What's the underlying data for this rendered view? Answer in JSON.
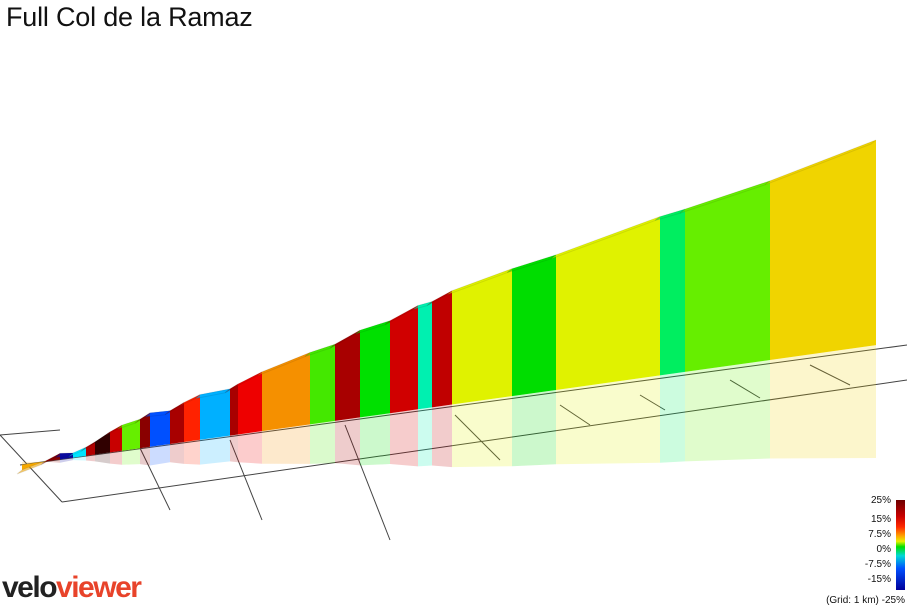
{
  "chart_data": {
    "type": "area",
    "title": "Full Col de la Ramaz",
    "grid_label": "(Grid: 1 km)",
    "legend": {
      "ticks": [
        "25%",
        "15%",
        "7.5%",
        "0%",
        "-7.5%",
        "-15%",
        "-25%"
      ],
      "colors": [
        "#6d0000",
        "#c80000",
        "#ff2a00",
        "#ffa500",
        "#e8f000",
        "#00e000",
        "#00d8d8",
        "#0050ff",
        "#00009a"
      ]
    },
    "segments": [
      {
        "gradient": 6,
        "color": "#f5a800"
      },
      {
        "gradient": 14,
        "color": "#8a0000"
      },
      {
        "gradient": -14,
        "color": "#0a0aa0"
      },
      {
        "gradient": 9,
        "color": "#00e5ff"
      },
      {
        "gradient": 18,
        "color": "#b00000"
      },
      {
        "gradient": 22,
        "color": "#300000"
      },
      {
        "gradient": 16,
        "color": "#c80000"
      },
      {
        "gradient": 3,
        "color": "#66ee00"
      },
      {
        "gradient": 20,
        "color": "#8a0000"
      },
      {
        "gradient": -10,
        "color": "#0050ff"
      },
      {
        "gradient": 18,
        "color": "#a80000"
      },
      {
        "gradient": 12,
        "color": "#ff2200"
      },
      {
        "gradient": -5,
        "color": "#00b0ff"
      },
      {
        "gradient": 18,
        "color": "#a80000"
      },
      {
        "gradient": 13,
        "color": "#ee0000"
      },
      {
        "gradient": 7,
        "color": "#f59000"
      },
      {
        "gradient": 3,
        "color": "#44e800"
      },
      {
        "gradient": 16,
        "color": "#a80000"
      },
      {
        "gradient": 2,
        "color": "#00e000"
      },
      {
        "gradient": 15,
        "color": "#d00000"
      },
      {
        "gradient": 0,
        "color": "#00f0b0"
      },
      {
        "gradient": 15,
        "color": "#c00000"
      },
      {
        "gradient": 5,
        "color": "#e0f200"
      },
      {
        "gradient": 2,
        "color": "#00dd00"
      },
      {
        "gradient": 5,
        "color": "#e0f200"
      },
      {
        "gradient": 1,
        "color": "#00ee60"
      },
      {
        "gradient": 3,
        "color": "#66ee00"
      },
      {
        "gradient": 6,
        "color": "#f0d400"
      }
    ]
  },
  "branding": {
    "logo_part1": "velo",
    "logo_part2": "viewer"
  }
}
